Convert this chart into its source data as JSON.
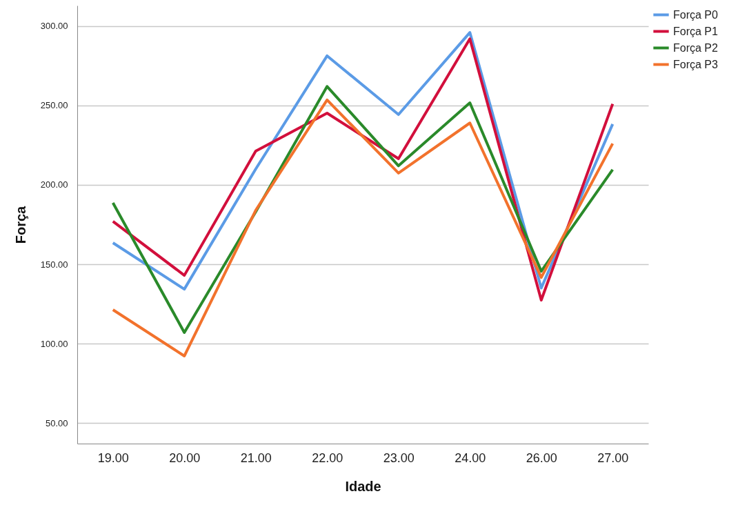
{
  "chart_data": {
    "type": "line",
    "xlabel": "Idade",
    "ylabel": "Força",
    "categories": [
      "19.00",
      "20.00",
      "21.00",
      "22.00",
      "23.00",
      "24.00",
      "26.00",
      "27.00"
    ],
    "series": [
      {
        "name": "Força P0",
        "color": "#5b9be6",
        "values": [
          163.5,
          134.3,
          210,
          281.3,
          244.3,
          296,
          135,
          238.3
        ]
      },
      {
        "name": "Força P1",
        "color": "#d20f3c",
        "values": [
          177,
          143,
          221.3,
          245.2,
          216.5,
          292,
          127.4,
          251
        ]
      },
      {
        "name": "Força P2",
        "color": "#2a8a2a",
        "values": [
          188.7,
          107,
          183,
          262,
          212,
          251.7,
          145.6,
          209.6
        ]
      },
      {
        "name": "Força P3",
        "color": "#f2722c",
        "values": [
          121.3,
          92.2,
          184,
          253.5,
          207.4,
          239,
          141.7,
          226
        ]
      }
    ],
    "ylim": [
      37,
      313
    ],
    "yticks": [
      {
        "value": 50,
        "label": "50.00"
      },
      {
        "value": 100,
        "label": "100.00"
      },
      {
        "value": 150,
        "label": "150.00"
      },
      {
        "value": 200,
        "label": "200.00"
      },
      {
        "value": 250,
        "label": "250.00"
      },
      {
        "value": 300,
        "label": "300.00"
      }
    ],
    "grid": "y",
    "legend": "top right",
    "marker": "none",
    "line_style": "solid"
  }
}
